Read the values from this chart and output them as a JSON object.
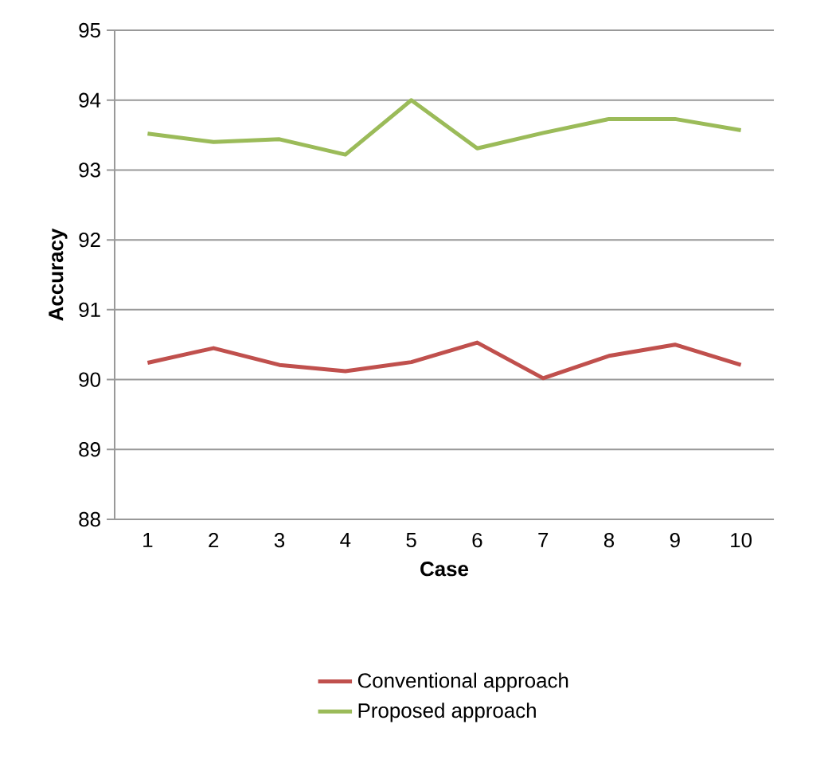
{
  "chart_data": {
    "type": "line",
    "xlabel": "Case",
    "ylabel": "Accuracy",
    "categories": [
      "1",
      "2",
      "3",
      "4",
      "5",
      "6",
      "7",
      "8",
      "9",
      "10"
    ],
    "series": [
      {
        "name": "Conventional approach",
        "color": "#c0504d",
        "values": [
          90.24,
          90.45,
          90.21,
          90.12,
          90.25,
          90.53,
          90.02,
          90.34,
          90.5,
          90.21
        ]
      },
      {
        "name": "Proposed approach",
        "color": "#9bbb59",
        "values": [
          93.52,
          93.4,
          93.44,
          93.22,
          94.0,
          93.31,
          93.53,
          93.73,
          93.73,
          93.57
        ]
      }
    ],
    "ylim": [
      88,
      95
    ],
    "yticks": [
      88,
      89,
      90,
      91,
      92,
      93,
      94,
      95
    ],
    "grid": "y",
    "legend": "bottom",
    "marker": "none",
    "line_style": "solid"
  }
}
